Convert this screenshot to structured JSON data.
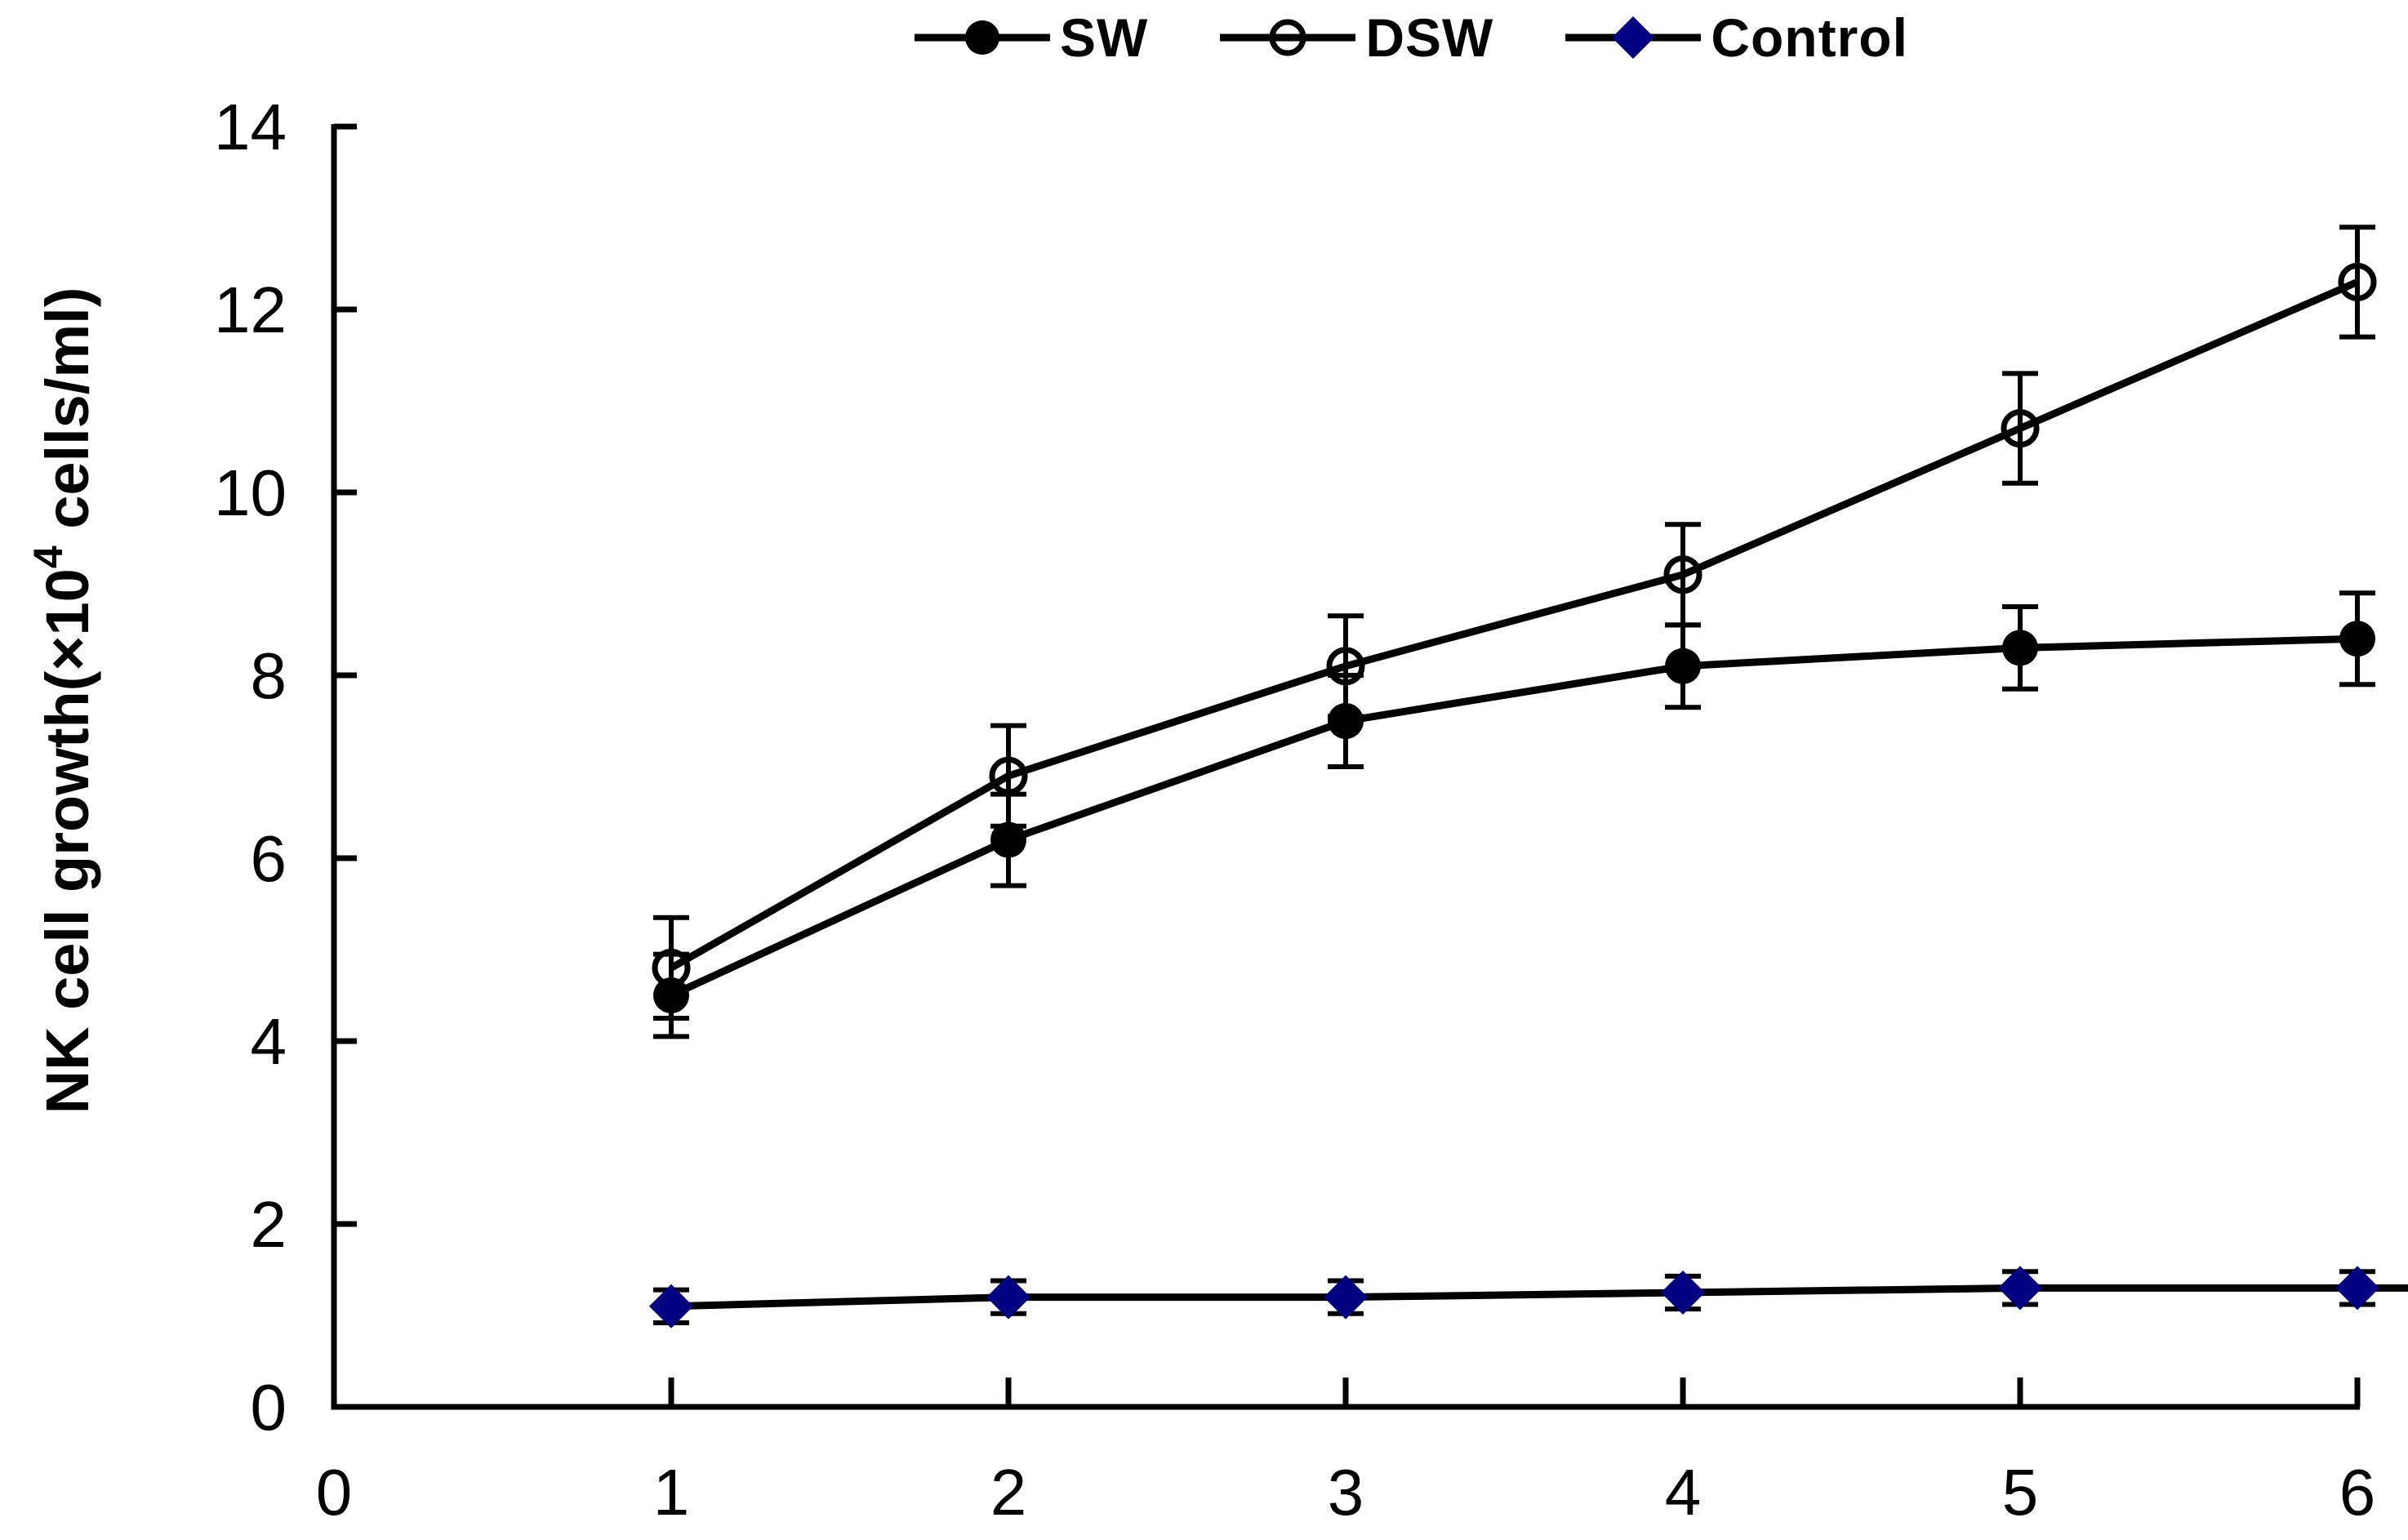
{
  "figure": {
    "background": "#ffffff",
    "axis_color": "#000000",
    "y_axis_title": {
      "prefix": "NK cell growth(×10",
      "superscript": "4",
      "suffix": " cells/ml)"
    },
    "legend": [
      {
        "id": "sw",
        "label": "SW",
        "marker": "filled-circle",
        "color": "#000000"
      },
      {
        "id": "dsw",
        "label": "DSW",
        "marker": "open-circle",
        "color": "#000000"
      },
      {
        "id": "control",
        "label": "Control",
        "marker": "filled-diamond",
        "color": "#000080"
      }
    ]
  },
  "chart_data": {
    "type": "line",
    "title": "",
    "xlabel": "",
    "ylabel": "NK cell growth(×10^4 cells/ml)",
    "grid": false,
    "legend_position": "top-center",
    "xlim": [
      0,
      6
    ],
    "ylim": [
      0,
      14
    ],
    "x_ticks": [
      0,
      1,
      2,
      3,
      4,
      5,
      6
    ],
    "y_ticks": [
      0,
      2,
      4,
      6,
      8,
      10,
      12,
      14
    ],
    "x": [
      1,
      2,
      3,
      4,
      5,
      6
    ],
    "series": [
      {
        "name": "SW",
        "marker": "filled-circle",
        "line_color": "#000000",
        "marker_color": "#000000",
        "values": [
          4.5,
          6.2,
          7.5,
          8.1,
          8.3,
          8.4
        ],
        "errors": [
          0.45,
          0.5,
          0.5,
          0.45,
          0.45,
          0.5
        ]
      },
      {
        "name": "DSW",
        "marker": "open-circle",
        "line_color": "#000000",
        "marker_color": "#000000",
        "values": [
          4.8,
          6.9,
          8.1,
          9.1,
          10.7,
          12.3
        ],
        "errors": [
          0.55,
          0.55,
          0.55,
          0.55,
          0.6,
          0.6
        ]
      },
      {
        "name": "Control",
        "marker": "filled-diamond",
        "line_color": "#000000",
        "marker_color": "#000080",
        "values": [
          1.1,
          1.2,
          1.2,
          1.25,
          1.3,
          1.3
        ],
        "errors": [
          0.18,
          0.18,
          0.18,
          0.18,
          0.18,
          0.18
        ],
        "line_extends_to_right_edge": true
      }
    ]
  }
}
